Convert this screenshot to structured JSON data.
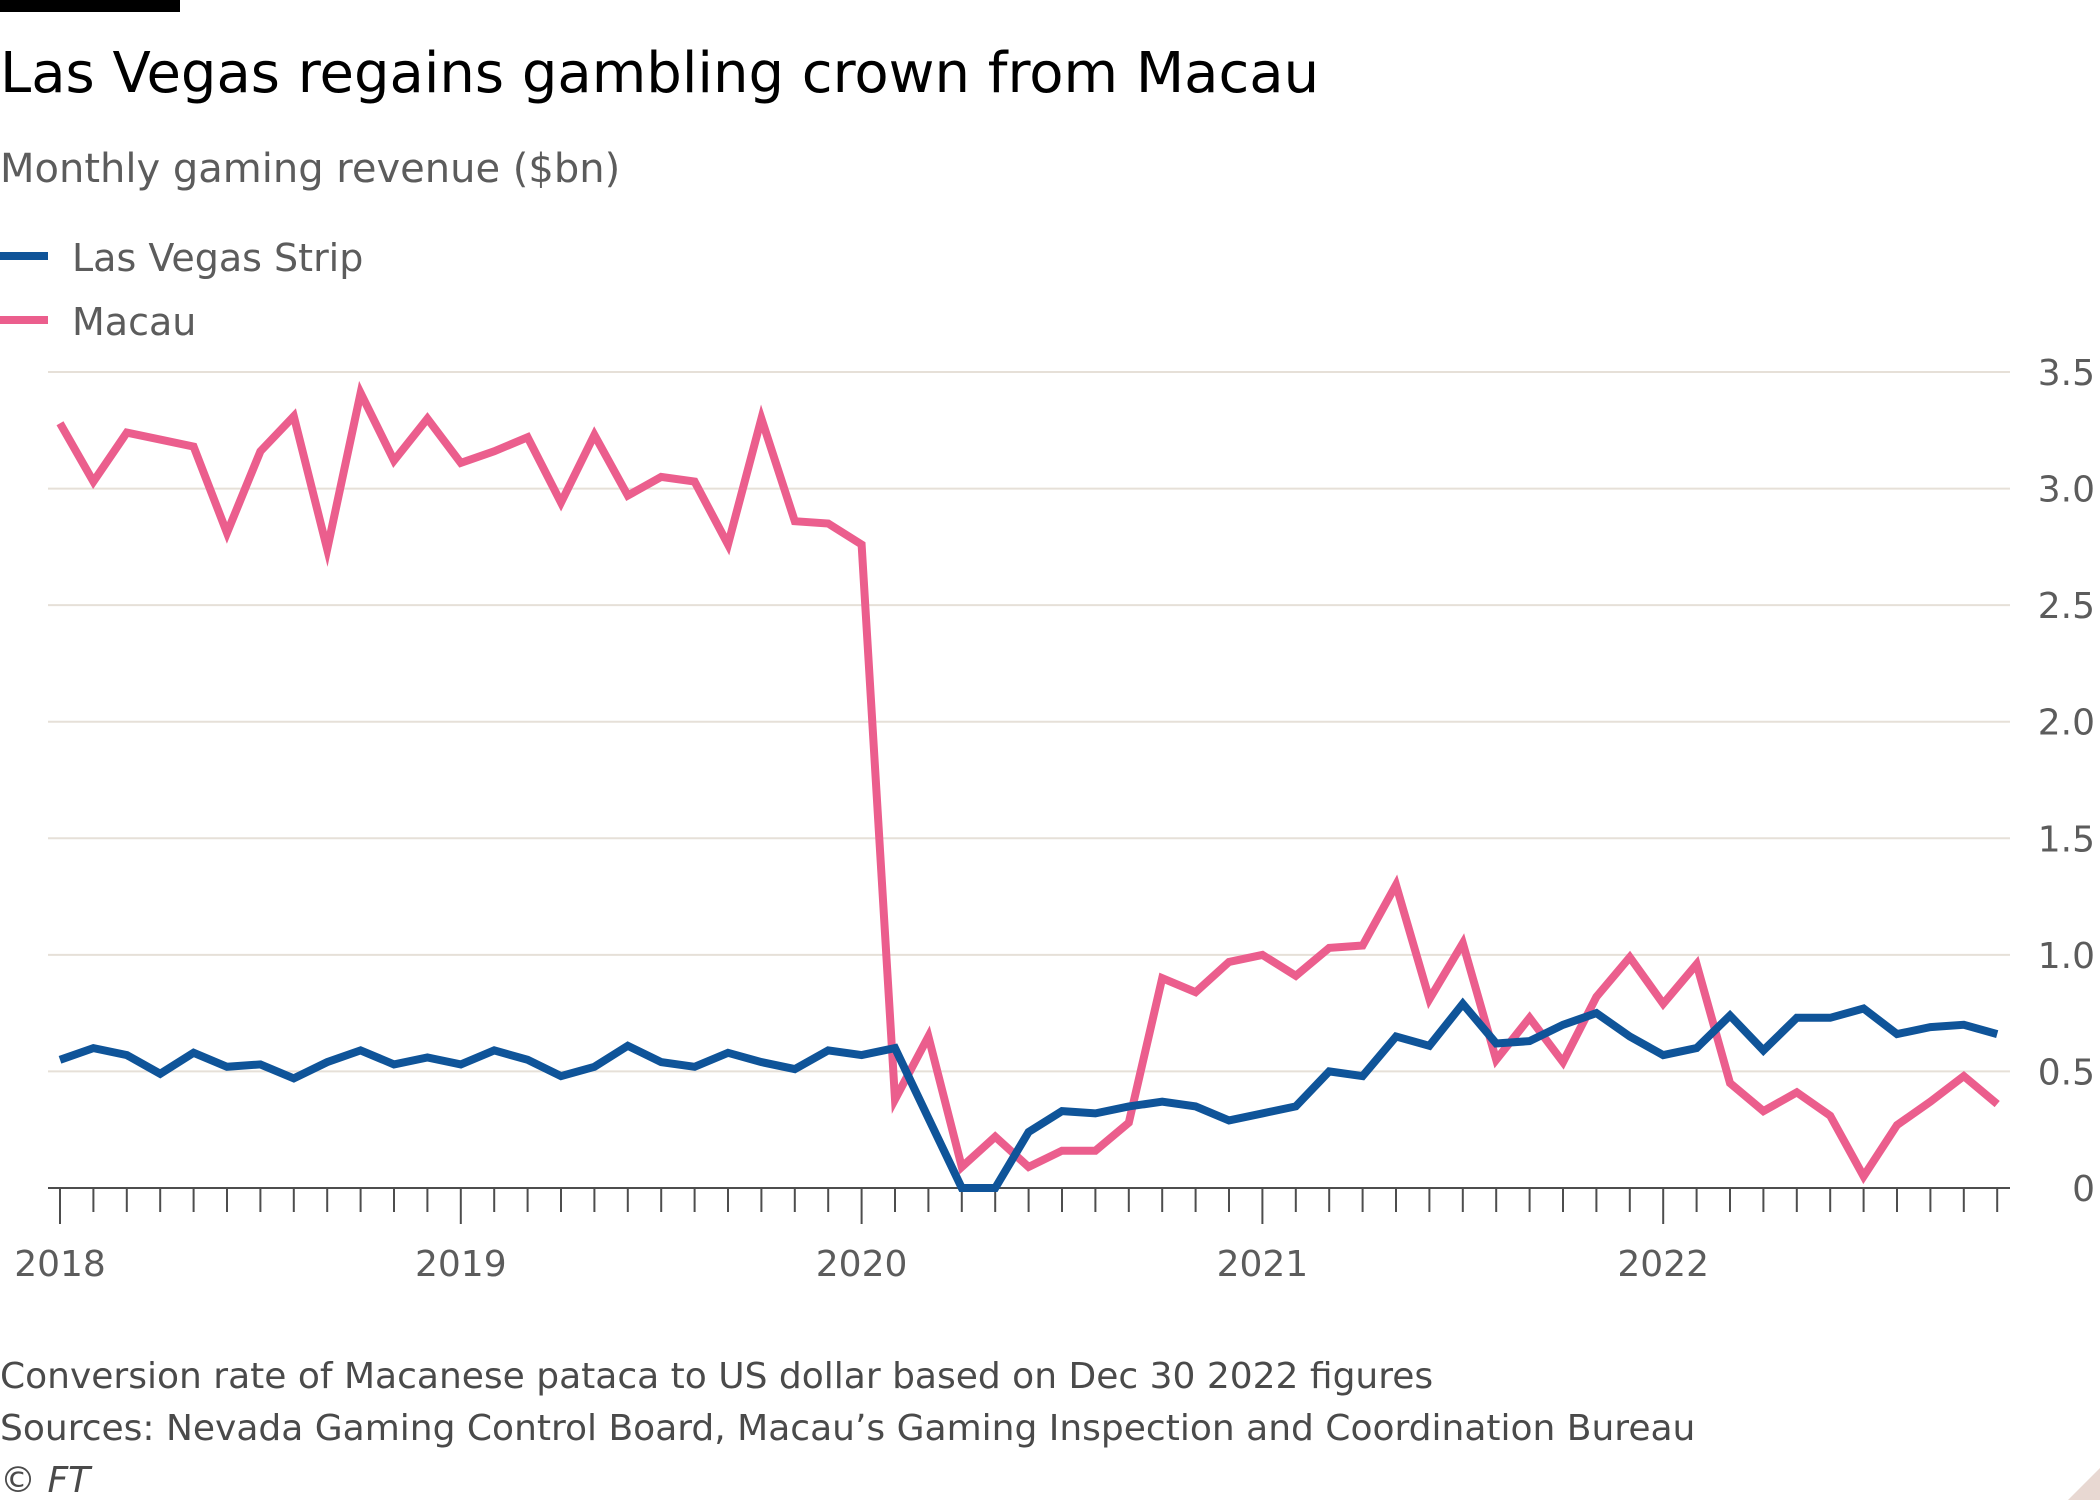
{
  "title": "Las Vegas regains gambling crown from Macau",
  "subtitle": "Monthly gaming revenue ($bn)",
  "footnote": "Conversion rate of Macanese pataca to US dollar based on Dec 30 2022 figures",
  "sources": "Sources: Nevada Gaming Control Board, Macau’s Gaming Inspection and Coordination Bureau",
  "credit": "© FT",
  "colors": {
    "las_vegas": "#0f5499",
    "macau": "#eb5e8d",
    "grid": "#e6e0d8",
    "axis": "#4d4d4d",
    "accent_bar": "#000000"
  },
  "chart_data": {
    "type": "line",
    "title": "Las Vegas regains gambling crown from Macau",
    "ylabel": "Monthly gaming revenue ($bn)",
    "xlabel": "",
    "ylim": [
      0,
      3.5
    ],
    "xlim": [
      "2018-01",
      "2022-11"
    ],
    "y_ticks": [
      "0",
      "0.5",
      "1.0",
      "1.5",
      "2.0",
      "2.5",
      "3.0",
      "3.5"
    ],
    "x_ticks": [
      "2018",
      "2019",
      "2020",
      "2021",
      "2022"
    ],
    "grid": true,
    "legend_position": "top-left",
    "x": [
      "2018-01",
      "2018-02",
      "2018-03",
      "2018-04",
      "2018-05",
      "2018-06",
      "2018-07",
      "2018-08",
      "2018-09",
      "2018-10",
      "2018-11",
      "2018-12",
      "2019-01",
      "2019-02",
      "2019-03",
      "2019-04",
      "2019-05",
      "2019-06",
      "2019-07",
      "2019-08",
      "2019-09",
      "2019-10",
      "2019-11",
      "2019-12",
      "2020-01",
      "2020-02",
      "2020-03",
      "2020-04",
      "2020-05",
      "2020-06",
      "2020-07",
      "2020-08",
      "2020-09",
      "2020-10",
      "2020-11",
      "2020-12",
      "2021-01",
      "2021-02",
      "2021-03",
      "2021-04",
      "2021-05",
      "2021-06",
      "2021-07",
      "2021-08",
      "2021-09",
      "2021-10",
      "2021-11",
      "2021-12",
      "2022-01",
      "2022-02",
      "2022-03",
      "2022-04",
      "2022-05",
      "2022-06",
      "2022-07",
      "2022-08",
      "2022-09",
      "2022-10",
      "2022-11"
    ],
    "series": [
      {
        "name": "Las Vegas Strip",
        "color": "#0f5499",
        "values": [
          0.55,
          0.6,
          0.57,
          0.49,
          0.58,
          0.52,
          0.53,
          0.47,
          0.54,
          0.59,
          0.53,
          0.56,
          0.53,
          0.59,
          0.55,
          0.48,
          0.52,
          0.61,
          0.54,
          0.52,
          0.58,
          0.54,
          0.51,
          0.59,
          0.57,
          0.6,
          0.3,
          0.0,
          0.0,
          0.24,
          0.33,
          0.32,
          0.35,
          0.37,
          0.35,
          0.29,
          0.32,
          0.35,
          0.5,
          0.48,
          0.65,
          0.61,
          0.79,
          0.62,
          0.63,
          0.7,
          0.75,
          0.65,
          0.57,
          0.6,
          0.74,
          0.59,
          0.73,
          0.73,
          0.77,
          0.66,
          0.69,
          0.7,
          0.66
        ]
      },
      {
        "name": "Macau",
        "color": "#eb5e8d",
        "values": [
          3.28,
          3.03,
          3.24,
          3.21,
          3.18,
          2.81,
          3.16,
          3.31,
          2.74,
          3.41,
          3.12,
          3.3,
          3.11,
          3.16,
          3.22,
          2.94,
          3.23,
          2.97,
          3.05,
          3.03,
          2.76,
          3.3,
          2.86,
          2.85,
          2.76,
          0.38,
          0.65,
          0.09,
          0.22,
          0.09,
          0.16,
          0.16,
          0.28,
          0.9,
          0.84,
          0.97,
          1.0,
          0.91,
          1.03,
          1.04,
          1.3,
          0.81,
          1.05,
          0.55,
          0.73,
          0.54,
          0.82,
          0.99,
          0.79,
          0.96,
          0.45,
          0.33,
          0.41,
          0.31,
          0.05,
          0.27,
          0.37,
          0.48,
          0.36
        ]
      }
    ]
  }
}
